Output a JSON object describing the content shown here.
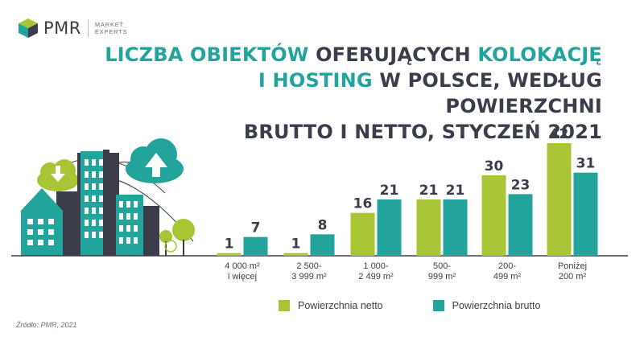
{
  "logo": {
    "name": "PMR",
    "tagline_line1": "MARKET",
    "tagline_line2": "EXPERTS"
  },
  "title": {
    "part1": "LICZBA OBIEKTÓW",
    "part2": " OFERUJĄCYCH ",
    "part3": "KOLOKACJĘ",
    "part4": "I HOSTING",
    "part5": " W POLSCE, WEDŁUG POWIERZCHNI",
    "part6": "BRUTTO I NETTO, STYCZEŃ 2021"
  },
  "colors": {
    "netto": "#a8c535",
    "brutto": "#22a39b",
    "text": "#3b3d4a",
    "accent": "#22a39b"
  },
  "chart_data": {
    "type": "bar",
    "categories": [
      [
        "4 000 m²",
        "i więcej"
      ],
      [
        "2 500-",
        "3 999 m²"
      ],
      [
        "1 000-",
        "2 499 m²"
      ],
      [
        "500-",
        "999 m²"
      ],
      [
        "200-",
        "499 m²"
      ],
      [
        "Poniżej",
        "200 m²"
      ]
    ],
    "series": [
      {
        "name": "Powierzchnia netto",
        "values": [
          1,
          1,
          16,
          21,
          30,
          42
        ]
      },
      {
        "name": "Powierzchnia brutto",
        "values": [
          7,
          8,
          21,
          21,
          23,
          31
        ]
      }
    ],
    "ylim": [
      0,
      42
    ],
    "grid": false,
    "legend_position": "bottom"
  },
  "footnote": "Źródło: PMR, 2021"
}
